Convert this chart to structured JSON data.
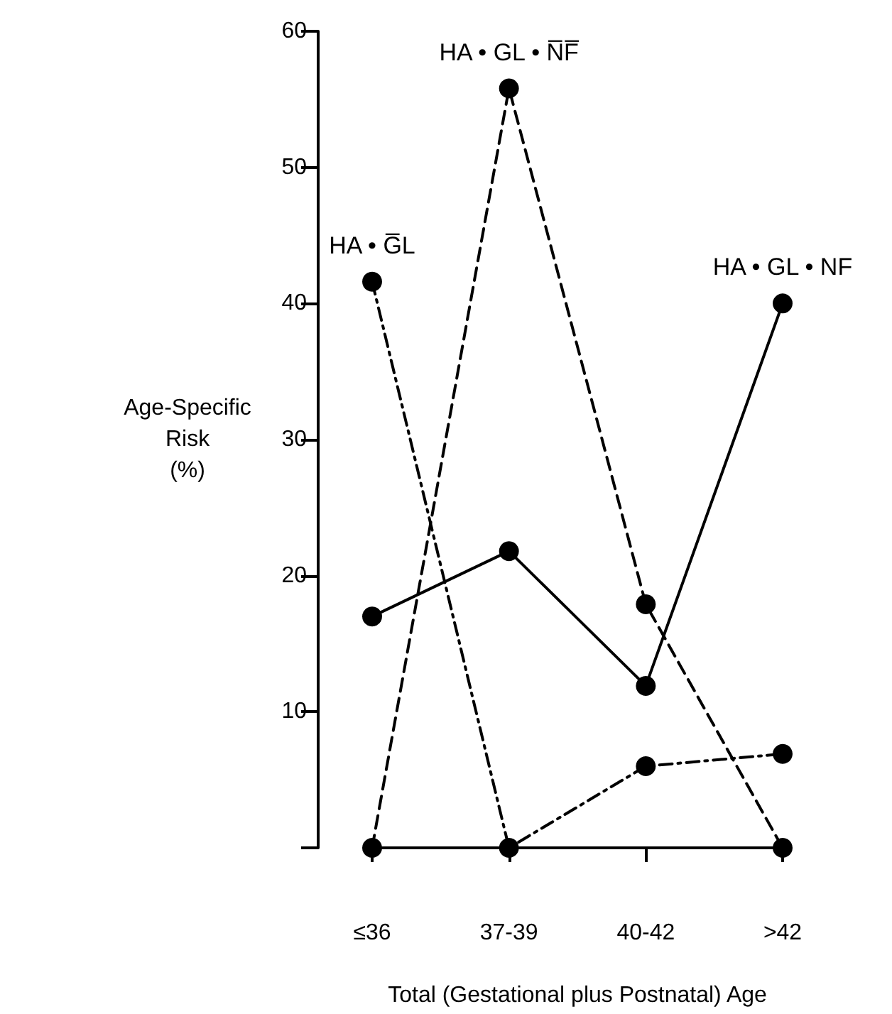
{
  "chart_data": {
    "type": "line",
    "xlabel": "Total (Gestational plus Postnatal) Age",
    "ylabel": "Age-Specific\nRisk\n(%)",
    "categories": [
      "≤36",
      "37-39",
      "40-42",
      ">42"
    ],
    "series": [
      {
        "name": "HA • GL • NF",
        "color": "#000000",
        "line_style": "solid",
        "values": [
          17,
          21.8,
          11.9,
          40
        ]
      },
      {
        "name": "HA • GL • N̅F̅",
        "color": "#000000",
        "line_style": "dashed",
        "values": [
          0,
          55.8,
          17.9,
          0
        ]
      },
      {
        "name": "HA • G̅L",
        "color": "#000000",
        "line_style": "dashdot",
        "values": [
          41.6,
          0,
          6,
          6.9
        ]
      }
    ],
    "ylim": [
      0,
      60
    ],
    "yticks": [
      {
        "value": 0,
        "label": null
      },
      10,
      20,
      30,
      40,
      50,
      60
    ],
    "grid": false,
    "legend": false,
    "marker": "circle"
  }
}
